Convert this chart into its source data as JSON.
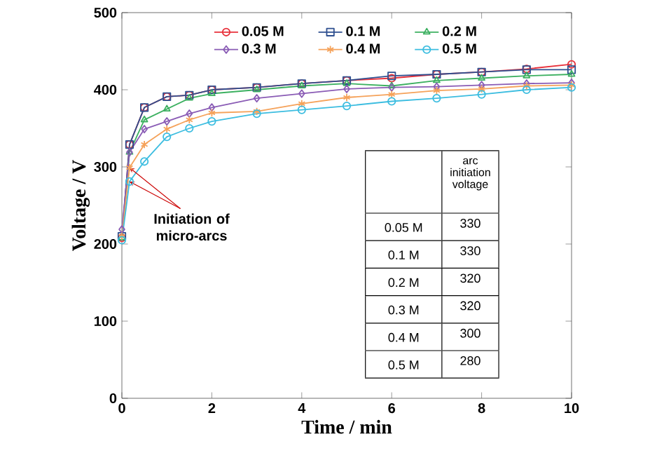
{
  "chart_data": {
    "type": "line",
    "xlabel": "Time / min",
    "ylabel": "Voltage / V",
    "xlim": [
      0,
      10
    ],
    "ylim": [
      0,
      500
    ],
    "xticks": [
      0,
      2,
      4,
      6,
      8,
      10
    ],
    "yticks": [
      0,
      100,
      200,
      300,
      400,
      500
    ],
    "legend": "top",
    "grid": false,
    "line_style": "solid",
    "x": [
      0,
      0.17,
      0.5,
      1,
      1.5,
      2,
      3,
      4,
      5,
      6,
      7,
      8,
      9,
      10
    ],
    "series": [
      {
        "name": "0.05 M",
        "color": "#e8303a",
        "marker": "circle",
        "values": [
          208,
          329,
          377,
          391,
          393,
          400,
          403,
          408,
          412,
          415,
          420,
          423,
          427,
          433
        ]
      },
      {
        "name": "0.1 M",
        "color": "#2e4f8f",
        "marker": "square",
        "values": [
          210,
          329,
          377,
          391,
          393,
          400,
          403,
          408,
          412,
          418,
          420,
          423,
          426,
          426
        ]
      },
      {
        "name": "0.2 M",
        "color": "#3cb060",
        "marker": "triangle",
        "values": [
          208,
          319,
          361,
          375,
          389,
          395,
          400,
          405,
          408,
          405,
          412,
          415,
          418,
          420
        ]
      },
      {
        "name": "0.3 M",
        "color": "#8a5cb5",
        "marker": "diamond",
        "values": [
          219,
          319,
          349,
          359,
          369,
          377,
          389,
          395,
          401,
          403,
          404,
          406,
          408,
          409
        ]
      },
      {
        "name": "0.4 M",
        "color": "#f5a25a",
        "marker": "cross",
        "values": [
          210,
          299,
          329,
          349,
          361,
          370,
          372,
          382,
          390,
          394,
          399,
          401,
          405,
          406
        ]
      },
      {
        "name": "0.5 M",
        "color": "#3cbde0",
        "marker": "circle",
        "values": [
          205,
          281,
          307,
          339,
          350,
          359,
          369,
          374,
          379,
          385,
          389,
          394,
          400,
          403
        ]
      }
    ],
    "annotations": [
      {
        "text": "Initiation of micro-arcs",
        "x": 0.17,
        "y": 299
      },
      "arc initiation voltage",
      "0.05 M",
      "330",
      "0.1 M",
      "330",
      "0.2 M",
      "320",
      "0.3 M",
      "320",
      "0.4 M",
      "300",
      "0.5 M",
      "280"
    ]
  }
}
